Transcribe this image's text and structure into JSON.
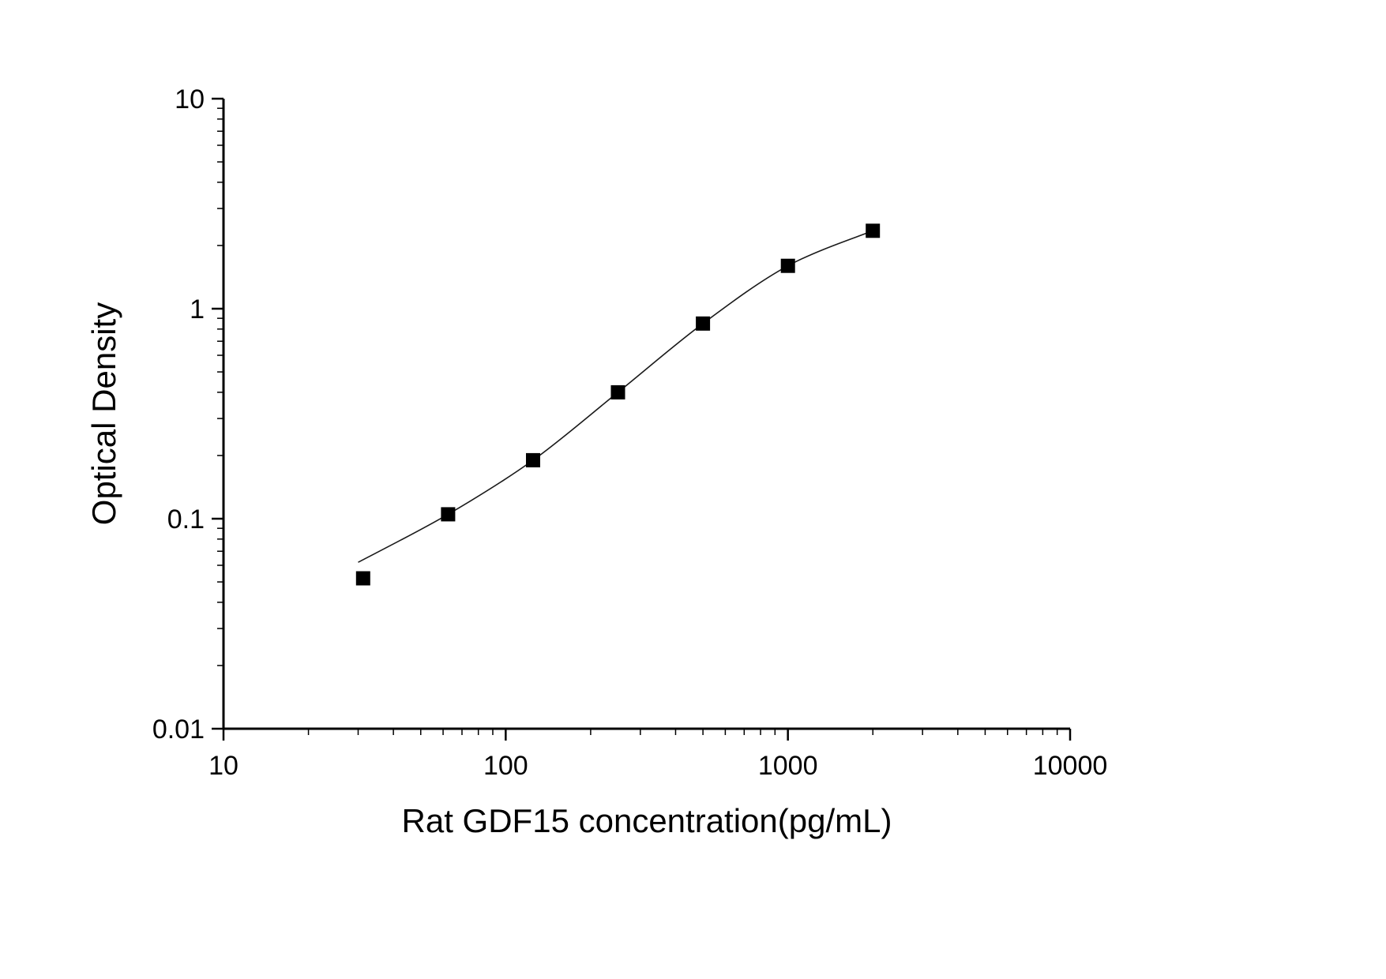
{
  "chart_data": {
    "type": "scatter",
    "title": "",
    "xlabel": "Rat GDF15 concentration(pg/mL)",
    "ylabel": "Optical Density",
    "x_scale": "log",
    "y_scale": "log",
    "xlim": [
      10,
      10000
    ],
    "ylim": [
      0.01,
      10
    ],
    "grid": false,
    "legend": false,
    "x_ticks": {
      "values": [
        10,
        100,
        1000,
        10000
      ],
      "labels": [
        "10",
        "100",
        "1000",
        "10000"
      ]
    },
    "y_ticks": {
      "values": [
        0.01,
        0.1,
        1,
        10
      ],
      "labels": [
        "0.01",
        "0.1",
        "1",
        "10"
      ]
    },
    "series": [
      {
        "name": "standard-points",
        "marker": "filled-square",
        "marker_color": "#000000",
        "marker_size": 18,
        "x": [
          31.25,
          62.5,
          125,
          250,
          500,
          1000,
          2000
        ],
        "y": [
          0.052,
          0.105,
          0.19,
          0.4,
          0.85,
          1.6,
          2.35
        ]
      }
    ],
    "fit_curve": {
      "name": "4pl-fit-curve",
      "color": "#1a1a1a",
      "width": 1.6,
      "x": [
        30,
        62.5,
        125,
        250,
        500,
        1000,
        2000
      ],
      "y": [
        0.062,
        0.105,
        0.19,
        0.4,
        0.85,
        1.6,
        2.35
      ]
    },
    "axis_color": "#000000"
  }
}
